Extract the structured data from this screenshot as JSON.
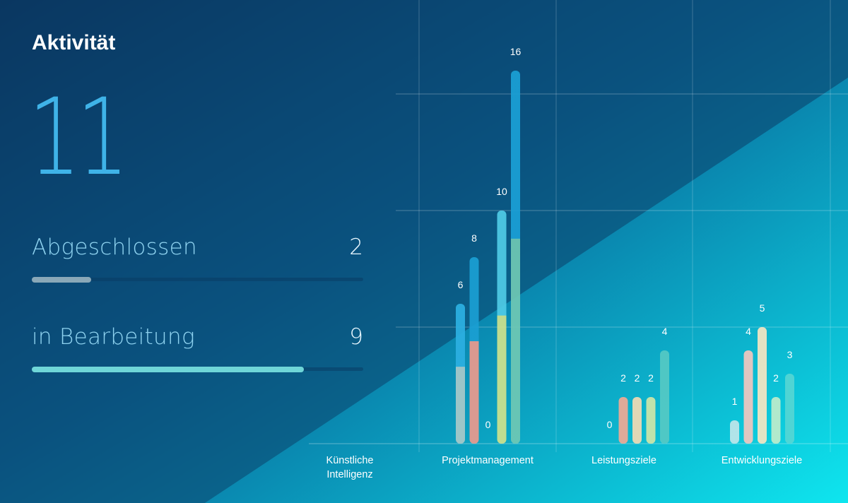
{
  "panel": {
    "title": "Aktivität",
    "total": "11",
    "stats": [
      {
        "label": "Abgeschlossen",
        "value": "2",
        "fraction": 0.18,
        "color": "#8aa8b8"
      },
      {
        "label": "in Bearbeitung",
        "value": "9",
        "fraction": 0.82,
        "color": "#6fd6d8"
      }
    ]
  },
  "colors": {
    "bg_dark": "#0b3a5e",
    "bg_light": "#0de0ea",
    "bar_top_blue": "#1aa3d8",
    "bar_top_cyan": "#55d0ea"
  },
  "chart_data": {
    "type": "bar",
    "ylim": [
      0,
      16
    ],
    "grid": true,
    "categories": [
      "Künstliche Intelligenz",
      "Projektmanagement",
      "Leistungsziele",
      "Entwicklungsziele"
    ],
    "category_labels": [
      [
        "Künstliche",
        "Intelligenz"
      ],
      [
        "Projektmanagement"
      ],
      [
        "Leistungsziele"
      ],
      [
        "Entwicklungsziele"
      ]
    ],
    "groups": [
      {
        "category": "Künstliche Intelligenz",
        "bars": []
      },
      {
        "category": "Projektmanagement",
        "bars": [
          {
            "value": 6,
            "label": "6",
            "color": "#a9c9c9",
            "top_color": "#2cb0e2"
          },
          {
            "value": 8,
            "label": "8",
            "color": "#ec9a8d",
            "top_color": "#1a9fd3"
          },
          {
            "value": 0,
            "label": "0",
            "color": "#d9e6a0",
            "top_color": "#55d0ea"
          },
          {
            "value": 10,
            "label": "10",
            "color": "#cfe28c",
            "top_color": "#4fcbe6"
          },
          {
            "value": 16,
            "label": "16",
            "color": "#6fc8b4",
            "top_color": "#1aa0d6"
          }
        ]
      },
      {
        "category": "Leistungsziele",
        "bars": [
          {
            "value": 0,
            "label": "0",
            "color": "#e8b9b0",
            "top_color": "#e8b9b0"
          },
          {
            "value": 2,
            "label": "2",
            "color": "#f0a994",
            "top_color": "#f0a994"
          },
          {
            "value": 2,
            "label": "2",
            "color": "#f2dab3",
            "top_color": "#f2dab3"
          },
          {
            "value": 2,
            "label": "2",
            "color": "#cfe6a8",
            "top_color": "#cfe6a8"
          },
          {
            "value": 4,
            "label": "4",
            "color": "#55c9c4",
            "top_color": "#55c9c4"
          }
        ]
      },
      {
        "category": "Entwicklungsziele",
        "bars": [
          {
            "value": 1,
            "label": "1",
            "color": "#bfe6ea",
            "top_color": "#bfe6ea"
          },
          {
            "value": 4,
            "label": "4",
            "color": "#f2c7bf",
            "top_color": "#f2c7bf"
          },
          {
            "value": 5,
            "label": "5",
            "color": "#f6e6c2",
            "top_color": "#f6e6c2"
          },
          {
            "value": 2,
            "label": "2",
            "color": "#bfeccb",
            "top_color": "#bfeccb"
          },
          {
            "value": 3,
            "label": "3",
            "color": "#55d6d4",
            "top_color": "#55d6d4"
          }
        ]
      }
    ]
  }
}
